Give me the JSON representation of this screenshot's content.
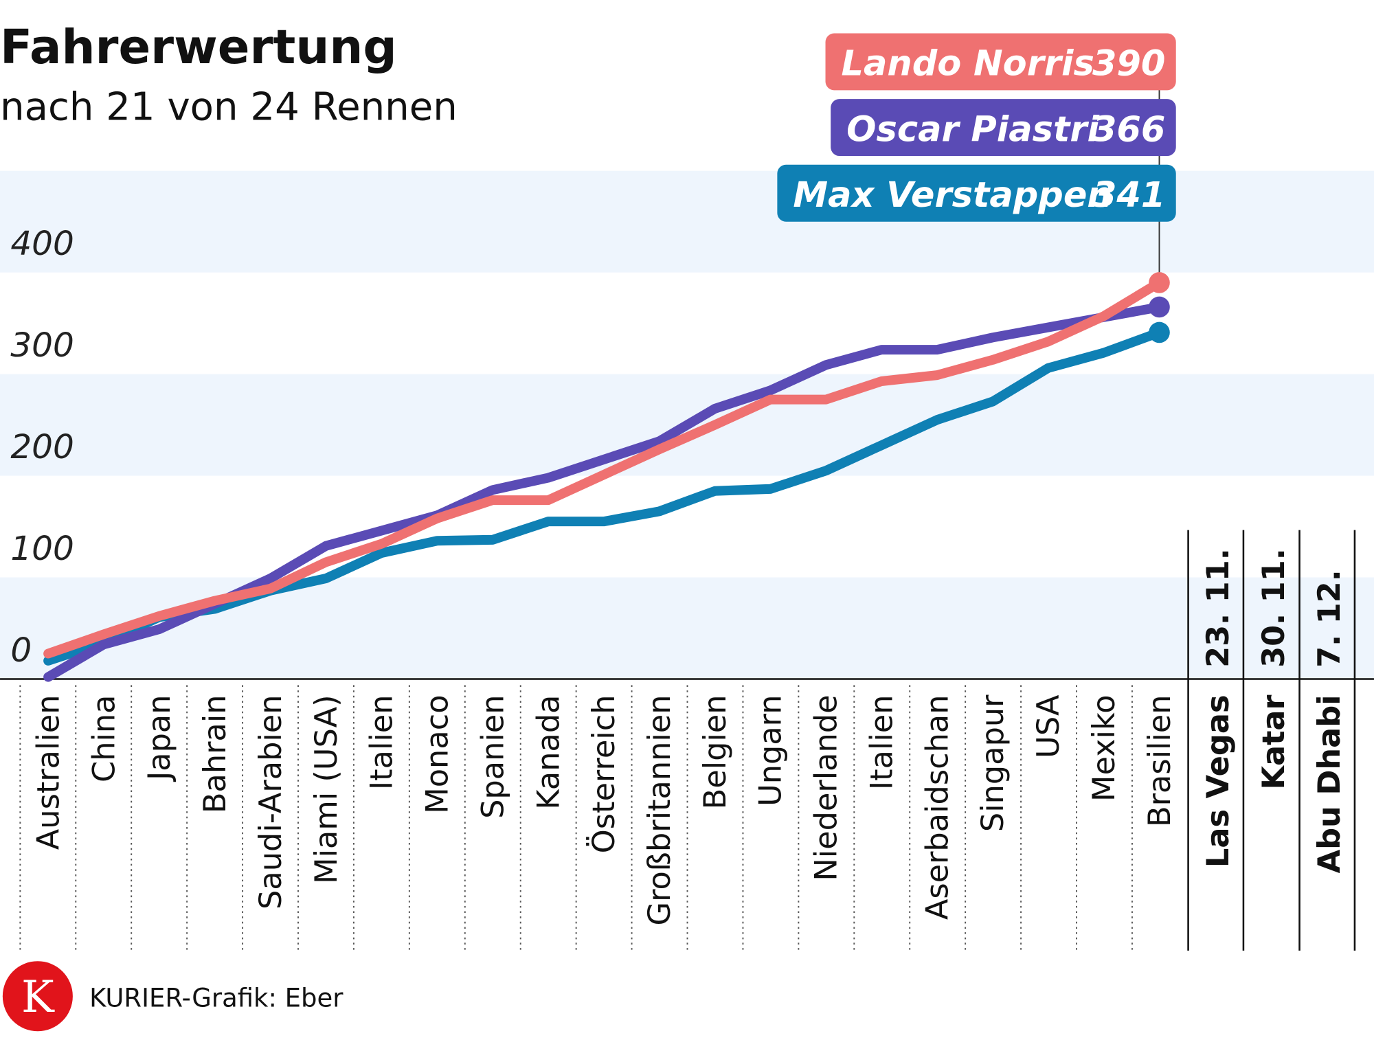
{
  "title": "Fahrerwertung",
  "subtitle": "nach 21 von 24 Rennen",
  "credit": "KURIER-Grafik: Eber",
  "logo_letter": "K",
  "chart_data": {
    "type": "line",
    "title": "Fahrerwertung",
    "subtitle": "nach 21 von 24 Rennen",
    "ylim": [
      0,
      500
    ],
    "yticks": [
      "0",
      "100",
      "200",
      "300",
      "400"
    ],
    "ytick_values": [
      0,
      100,
      200,
      300,
      400
    ],
    "band_color": "#eef5fd",
    "categories": [
      "Australien",
      "China",
      "Japan",
      "Bahrain",
      "Saudi-Arabien",
      "Miami (USA)",
      "Italien",
      "Monaco",
      "Spanien",
      "Kanada",
      "Österreich",
      "Großbritannien",
      "Belgien",
      "Ungarn",
      "Niederlande",
      "Italien",
      "Aserbaidschan",
      "Singapur",
      "USA",
      "Mexiko",
      "Brasilien"
    ],
    "future_races": [
      {
        "name": "Las Vegas",
        "date": "23. 11."
      },
      {
        "name": "Katar",
        "date": "30. 11."
      },
      {
        "name": "Abu Dhabi",
        "date": "7. 12."
      }
    ],
    "series": [
      {
        "name": "Max Verstappen",
        "total": "341",
        "color": "#0f80b4",
        "values": [
          18,
          36,
          61,
          69,
          87,
          99,
          124,
          136,
          137,
          155,
          155,
          165,
          185,
          187,
          205,
          230,
          255,
          273,
          306,
          321,
          341
        ]
      },
      {
        "name": "Oscar Piastri",
        "total": "366",
        "color": "#5a4bb5",
        "values": [
          2,
          34,
          49,
          74,
          99,
          131,
          146,
          161,
          186,
          198,
          216,
          234,
          266,
          284,
          309,
          324,
          324,
          336,
          346,
          356,
          366
        ]
      },
      {
        "name": "Lando Norris",
        "total": "390",
        "color": "#ef7171",
        "values": [
          25,
          44,
          62,
          77,
          89,
          115,
          133,
          158,
          176,
          176,
          201,
          226,
          250,
          275,
          275,
          293,
          299,
          314,
          332,
          357,
          390
        ]
      }
    ],
    "legend": "top-right",
    "grid": false
  }
}
